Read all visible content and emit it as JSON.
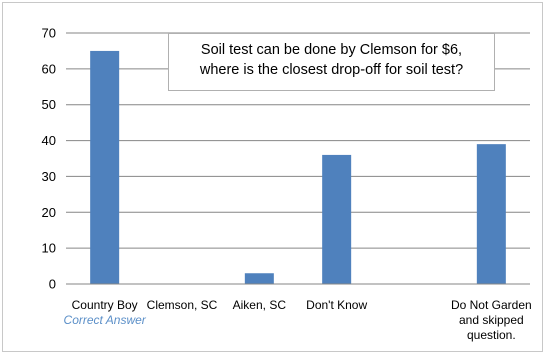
{
  "chart_data": {
    "type": "bar",
    "title": "",
    "xlabel": "",
    "ylabel": "",
    "ylim": [
      0,
      70
    ],
    "yticks": [
      0,
      10,
      20,
      30,
      40,
      50,
      60,
      70
    ],
    "grid": true,
    "legend": "none",
    "categories": [
      [
        "Country Boy"
      ],
      [
        "Clemson, SC"
      ],
      [
        "Aiken, SC"
      ],
      [
        "Don't Know"
      ],
      [],
      [
        "Do Not Garden",
        "and skipped",
        "question."
      ]
    ],
    "values": [
      65,
      0,
      3,
      36,
      0,
      39
    ],
    "category_note": {
      "index": 0,
      "text": "Correct Answer",
      "color": "#5b8fc8"
    },
    "annotation": {
      "lines": [
        "Soil test can be done by Clemson for $6,",
        "where is the closest drop-off for soil test?"
      ],
      "placement": "top-center"
    },
    "bar_color": "#4f81bd",
    "grid_color": "#868686"
  }
}
